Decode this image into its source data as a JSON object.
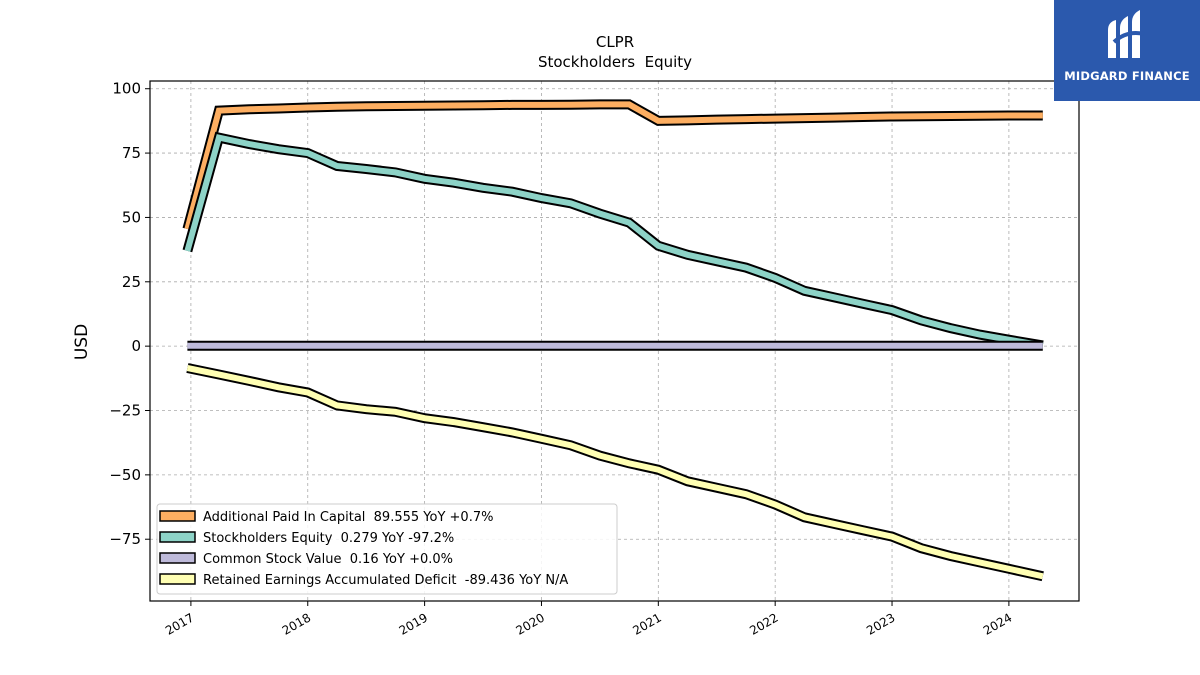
{
  "brand": {
    "name": "MIDGARD FINANCE",
    "icon": "midgard-logo-icon",
    "color": "#2b59ad"
  },
  "chart_data": {
    "type": "line",
    "title": "CLPR",
    "subtitle": "Stockholders  Equity",
    "xlabel": "",
    "ylabel": "USD",
    "xlim": [
      2016.65,
      2024.6
    ],
    "ylim": [
      -99,
      103
    ],
    "x_ticks": [
      {
        "value": 2017,
        "label": "2017"
      },
      {
        "value": 2018,
        "label": "2018"
      },
      {
        "value": 2019,
        "label": "2019"
      },
      {
        "value": 2020,
        "label": "2020"
      },
      {
        "value": 2021,
        "label": "2021"
      },
      {
        "value": 2022,
        "label": "2022"
      },
      {
        "value": 2023,
        "label": "2023"
      },
      {
        "value": 2024,
        "label": "2024"
      }
    ],
    "y_ticks": [
      {
        "value": 100,
        "label": "100"
      },
      {
        "value": 75,
        "label": "75"
      },
      {
        "value": 50,
        "label": "50"
      },
      {
        "value": 25,
        "label": "25"
      },
      {
        "value": 0,
        "label": "0"
      },
      {
        "value": -25,
        "label": "−25"
      },
      {
        "value": -50,
        "label": "−50"
      },
      {
        "value": -75,
        "label": "−75"
      }
    ],
    "grid": true,
    "legend_position": "bottom-left",
    "series": [
      {
        "name": "Additional Paid In Capital  89.555 YoY +0.7%",
        "color": "#fdae61",
        "points": [
          [
            2016.97,
            45.5
          ],
          [
            2017.24,
            91.5
          ],
          [
            2017.5,
            92.0
          ],
          [
            2017.75,
            92.3
          ],
          [
            2018.0,
            92.7
          ],
          [
            2018.25,
            93.0
          ],
          [
            2018.5,
            93.2
          ],
          [
            2018.75,
            93.3
          ],
          [
            2019.0,
            93.4
          ],
          [
            2019.25,
            93.5
          ],
          [
            2019.5,
            93.6
          ],
          [
            2019.75,
            93.7
          ],
          [
            2020.0,
            93.7
          ],
          [
            2020.25,
            93.8
          ],
          [
            2020.5,
            93.9
          ],
          [
            2020.75,
            93.9
          ],
          [
            2021.0,
            87.5
          ],
          [
            2021.25,
            87.7
          ],
          [
            2021.5,
            88.0
          ],
          [
            2021.75,
            88.2
          ],
          [
            2022.0,
            88.4
          ],
          [
            2022.25,
            88.6
          ],
          [
            2022.5,
            88.8
          ],
          [
            2022.75,
            89.0
          ],
          [
            2023.0,
            89.2
          ],
          [
            2023.25,
            89.3
          ],
          [
            2023.5,
            89.4
          ],
          [
            2023.75,
            89.5
          ],
          [
            2024.0,
            89.6
          ],
          [
            2024.29,
            89.6
          ]
        ]
      },
      {
        "name": "Stockholders Equity  0.279 YoY -97.2%",
        "color": "#8dd3c7",
        "points": [
          [
            2016.97,
            37.0
          ],
          [
            2017.24,
            81.0
          ],
          [
            2017.5,
            78.5
          ],
          [
            2017.75,
            76.5
          ],
          [
            2018.0,
            75.0
          ],
          [
            2018.25,
            70.0
          ],
          [
            2018.5,
            68.8
          ],
          [
            2018.75,
            67.5
          ],
          [
            2019.0,
            65.0
          ],
          [
            2019.25,
            63.5
          ],
          [
            2019.5,
            61.5
          ],
          [
            2019.75,
            60.0
          ],
          [
            2020.0,
            57.5
          ],
          [
            2020.25,
            55.5
          ],
          [
            2020.5,
            51.5
          ],
          [
            2020.75,
            48.0
          ],
          [
            2021.0,
            39.0
          ],
          [
            2021.25,
            35.5
          ],
          [
            2021.5,
            33.0
          ],
          [
            2021.75,
            30.5
          ],
          [
            2022.0,
            26.5
          ],
          [
            2022.25,
            21.5
          ],
          [
            2022.5,
            19.0
          ],
          [
            2022.75,
            16.5
          ],
          [
            2023.0,
            14.0
          ],
          [
            2023.25,
            10.0
          ],
          [
            2023.5,
            7.0
          ],
          [
            2023.75,
            4.5
          ],
          [
            2024.0,
            2.5
          ],
          [
            2024.29,
            0.3
          ]
        ]
      },
      {
        "name": "Common Stock Value  0.16 YoY +0.0%",
        "color": "#bebada",
        "points": [
          [
            2016.97,
            0.16
          ],
          [
            2024.29,
            0.16
          ]
        ]
      },
      {
        "name": "Retained Earnings Accumulated Deficit  -89.436 YoY N/A",
        "color": "#ffffb3",
        "points": [
          [
            2016.97,
            -8.5
          ],
          [
            2017.24,
            -11.0
          ],
          [
            2017.5,
            -13.5
          ],
          [
            2017.75,
            -16.0
          ],
          [
            2018.0,
            -18.0
          ],
          [
            2018.25,
            -23.0
          ],
          [
            2018.5,
            -24.5
          ],
          [
            2018.75,
            -25.5
          ],
          [
            2019.0,
            -28.0
          ],
          [
            2019.25,
            -29.5
          ],
          [
            2019.5,
            -31.5
          ],
          [
            2019.75,
            -33.5
          ],
          [
            2020.0,
            -36.0
          ],
          [
            2020.25,
            -38.5
          ],
          [
            2020.5,
            -42.5
          ],
          [
            2020.75,
            -45.5
          ],
          [
            2021.0,
            -48.0
          ],
          [
            2021.25,
            -52.5
          ],
          [
            2021.5,
            -55.0
          ],
          [
            2021.75,
            -57.5
          ],
          [
            2022.0,
            -61.5
          ],
          [
            2022.25,
            -66.5
          ],
          [
            2022.5,
            -69.0
          ],
          [
            2022.75,
            -71.5
          ],
          [
            2023.0,
            -74.0
          ],
          [
            2023.25,
            -78.5
          ],
          [
            2023.5,
            -81.5
          ],
          [
            2023.75,
            -84.0
          ],
          [
            2024.0,
            -86.5
          ],
          [
            2024.29,
            -89.4
          ]
        ]
      }
    ]
  }
}
